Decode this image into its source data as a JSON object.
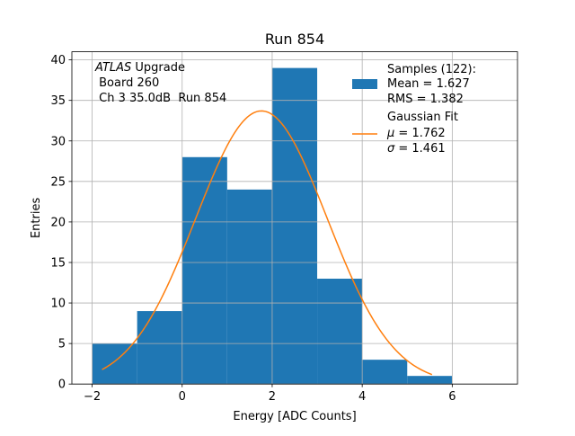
{
  "chart_data": {
    "type": "bar",
    "title": "Run 854",
    "xlabel": "Energy [ADC Counts]",
    "ylabel": "Entries",
    "xlim": [
      -2.45,
      7.45
    ],
    "ylim": [
      0,
      41
    ],
    "grid": true,
    "x_ticks": [
      -2,
      0,
      2,
      4,
      6
    ],
    "x_tick_labels": [
      "−2",
      "0",
      "2",
      "4",
      "6"
    ],
    "y_ticks": [
      0,
      5,
      10,
      15,
      20,
      25,
      30,
      35,
      40
    ],
    "y_tick_labels": [
      "0",
      "5",
      "10",
      "15",
      "20",
      "25",
      "30",
      "35",
      "40"
    ],
    "histogram": {
      "name": "Samples",
      "bin_edges": [
        -2,
        -1,
        0,
        1,
        2,
        3,
        4,
        5,
        6,
        7
      ],
      "counts": [
        5,
        9,
        28,
        24,
        39,
        13,
        3,
        1,
        0
      ],
      "color": "#1f77b4"
    },
    "fit": {
      "name": "Gaussian Fit",
      "amplitude": 33.7,
      "mu": 1.762,
      "sigma": 1.461,
      "x_range": [
        -1.78,
        5.55
      ],
      "color": "#ff7f0e"
    },
    "annotation": {
      "experiment": "ATLAS",
      "experiment_suffix": " Upgrade",
      "line2": " Board 260",
      "line3": " Ch 3 35.0dB  Run 854"
    },
    "legend": {
      "position": "top-right",
      "samples_line1": "Samples (122):",
      "samples_line2": "Mean = 1.627",
      "samples_line3": "RMS = 1.382",
      "fit_line1": "Gaussian Fit",
      "fit_mu_symbol": "μ",
      "fit_mu_value": " = 1.762",
      "fit_sigma_symbol": "σ",
      "fit_sigma_value": " = 1.461"
    }
  }
}
